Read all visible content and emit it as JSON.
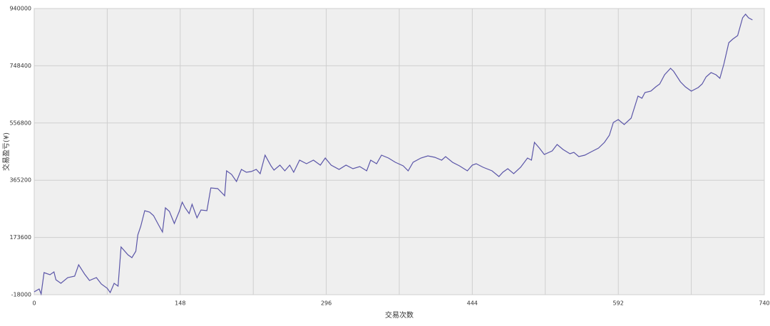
{
  "chart_data": {
    "type": "line",
    "x_label": "交易次数",
    "y_label": "交易盈亏(¥)",
    "xlim": [
      0,
      740
    ],
    "xticks": [
      0,
      148,
      296,
      444,
      592,
      740
    ],
    "ylim": [
      -18000,
      940000
    ],
    "yticks": [
      -18000,
      173600,
      365200,
      556800,
      748400,
      940000
    ],
    "grid": true,
    "series": [
      {
        "name": "交易盈亏",
        "color": "#5b56a8",
        "x": [
          0,
          5,
          7,
          10,
          16,
          20,
          22,
          27,
          34,
          41,
          45,
          51,
          56,
          63,
          68,
          74,
          77,
          81,
          85,
          88,
          95,
          99,
          103,
          105,
          108,
          112,
          117,
          121,
          126,
          130,
          133,
          137,
          142,
          147,
          150,
          153,
          157,
          160,
          165,
          169,
          175,
          179,
          186,
          193,
          195,
          200,
          205,
          210,
          215,
          220,
          225,
          229,
          234,
          240,
          243,
          249,
          254,
          259,
          263,
          269,
          276,
          283,
          290,
          295,
          301,
          309,
          316,
          323,
          330,
          337,
          341,
          347,
          352,
          359,
          366,
          374,
          379,
          384,
          392,
          399,
          406,
          413,
          417,
          424,
          431,
          439,
          444,
          448,
          455,
          464,
          471,
          475,
          480,
          486,
          493,
          500,
          504,
          507,
          512,
          517,
          525,
          530,
          536,
          543,
          547,
          552,
          558,
          565,
          572,
          578,
          583,
          587,
          592,
          598,
          605,
          612,
          616,
          619,
          625,
          630,
          634,
          639,
          645,
          648,
          655,
          660,
          666,
          673,
          677,
          681,
          686,
          691,
          695,
          699,
          704,
          708,
          713,
          718,
          721,
          724,
          728
        ],
        "values": [
          -8500,
          1000,
          -15600,
          55900,
          48700,
          58300,
          32000,
          20100,
          39200,
          44000,
          82100,
          51100,
          29700,
          39200,
          17700,
          3400,
          -10900,
          20100,
          10600,
          141700,
          115400,
          105900,
          127400,
          182200,
          210800,
          263200,
          258400,
          246500,
          215500,
          191700,
          272700,
          260800,
          220300,
          260800,
          291800,
          272700,
          253700,
          284600,
          239400,
          265600,
          263200,
          339500,
          337100,
          313200,
          396600,
          384700,
          360900,
          401400,
          391900,
          394300,
          401400,
          387100,
          449100,
          413300,
          399000,
          415700,
          396600,
          415700,
          391900,
          432400,
          420500,
          432400,
          415700,
          439500,
          415700,
          401400,
          415700,
          403800,
          410900,
          396600,
          432400,
          420500,
          449100,
          439500,
          425200,
          413300,
          396600,
          425200,
          439500,
          446700,
          441900,
          432400,
          444300,
          425200,
          413300,
          396600,
          415700,
          420500,
          408600,
          396600,
          377600,
          391900,
          403800,
          387100,
          408600,
          439500,
          432400,
          492000,
          472900,
          451500,
          463400,
          484800,
          468100,
          453800,
          458600,
          444300,
          449100,
          461000,
          472900,
          492000,
          515800,
          558700,
          568200,
          551500,
          573000,
          646900,
          639700,
          658800,
          663500,
          677800,
          687400,
          718300,
          739800,
          730300,
          694500,
          677800,
          663500,
          675500,
          687400,
          711200,
          725500,
          718300,
          706400,
          754100,
          825600,
          837500,
          849400,
          909000,
          920900,
          909000,
          901800
        ]
      }
    ]
  }
}
